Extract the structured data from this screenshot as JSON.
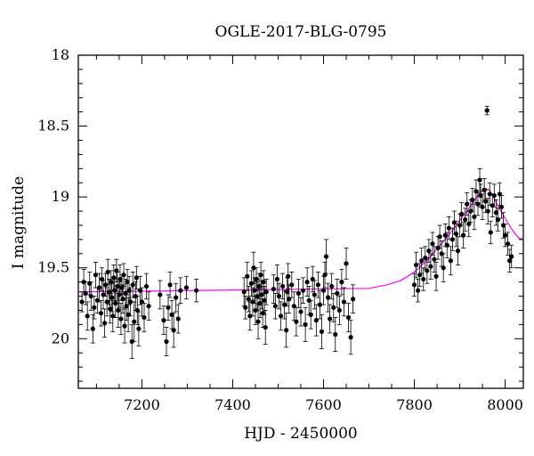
{
  "chart_data": {
    "type": "scatter",
    "title": "OGLE-2017-BLG-0795",
    "xlabel": "HJD - 2450000",
    "ylabel": "I magnitude",
    "xlim": [
      7060,
      8040
    ],
    "ylim": [
      18,
      20.35
    ],
    "y_inverted": true,
    "grid": false,
    "x_ticks": [
      "7200",
      "7400",
      "7600",
      "7800",
      "8000"
    ],
    "y_ticks": [
      "18",
      "18.5",
      "19",
      "19.5",
      "20"
    ],
    "series": [
      {
        "kind": "points_with_error_bars",
        "color": "#000000",
        "points": [
          [
            7068,
            19.74,
            0.07
          ],
          [
            7072,
            19.6,
            0.09
          ],
          [
            7076,
            19.68,
            0.08
          ],
          [
            7080,
            19.84,
            0.1
          ],
          [
            7085,
            19.61,
            0.08
          ],
          [
            7088,
            19.7,
            0.1
          ],
          [
            7092,
            19.93,
            0.1
          ],
          [
            7095,
            19.78,
            0.08
          ],
          [
            7098,
            19.55,
            0.09
          ],
          [
            7102,
            19.73,
            0.09
          ],
          [
            7106,
            19.64,
            0.1
          ],
          [
            7110,
            19.82,
            0.09
          ],
          [
            7112,
            19.58,
            0.08
          ],
          [
            7115,
            19.69,
            0.1
          ],
          [
            7118,
            19.89,
            0.1
          ],
          [
            7120,
            19.62,
            0.08
          ],
          [
            7123,
            19.74,
            0.1
          ],
          [
            7125,
            19.53,
            0.09
          ],
          [
            7128,
            19.67,
            0.09
          ],
          [
            7130,
            19.79,
            0.1
          ],
          [
            7132,
            19.6,
            0.08
          ],
          [
            7134,
            19.71,
            0.1
          ],
          [
            7136,
            19.84,
            0.11
          ],
          [
            7138,
            19.57,
            0.09
          ],
          [
            7140,
            19.66,
            0.09
          ],
          [
            7142,
            19.75,
            0.1
          ],
          [
            7144,
            19.52,
            0.08
          ],
          [
            7146,
            19.63,
            0.1
          ],
          [
            7148,
            19.8,
            0.12
          ],
          [
            7150,
            19.69,
            0.09
          ],
          [
            7152,
            19.58,
            0.1
          ],
          [
            7154,
            19.86,
            0.11
          ],
          [
            7156,
            19.64,
            0.09
          ],
          [
            7158,
            19.72,
            0.1
          ],
          [
            7160,
            19.55,
            0.08
          ],
          [
            7162,
            19.91,
            0.12
          ],
          [
            7164,
            19.68,
            0.1
          ],
          [
            7166,
            19.77,
            0.1
          ],
          [
            7168,
            19.6,
            0.09
          ],
          [
            7170,
            19.83,
            0.12
          ],
          [
            7172,
            19.66,
            0.1
          ],
          [
            7175,
            19.74,
            0.1
          ],
          [
            7178,
            20.02,
            0.12
          ],
          [
            7180,
            19.62,
            0.09
          ],
          [
            7183,
            19.88,
            0.14
          ],
          [
            7186,
            19.7,
            0.1
          ],
          [
            7188,
            19.57,
            0.08
          ],
          [
            7190,
            19.8,
            0.1
          ],
          [
            7193,
            19.93,
            0.12
          ],
          [
            7196,
            19.66,
            0.1
          ],
          [
            7200,
            19.74,
            0.1
          ],
          [
            7205,
            19.85,
            0.1
          ],
          [
            7210,
            19.63,
            0.09
          ],
          [
            7215,
            19.77,
            0.1
          ],
          [
            7240,
            19.69,
            0.1
          ],
          [
            7248,
            19.87,
            0.1
          ],
          [
            7254,
            20.02,
            0.1
          ],
          [
            7258,
            19.78,
            0.09
          ],
          [
            7262,
            19.62,
            0.09
          ],
          [
            7266,
            19.83,
            0.1
          ],
          [
            7270,
            19.94,
            0.12
          ],
          [
            7275,
            19.71,
            0.1
          ],
          [
            7280,
            19.86,
            0.1
          ],
          [
            7285,
            19.66,
            0.09
          ],
          [
            7298,
            19.64,
            0.08
          ],
          [
            7320,
            19.66,
            0.08
          ],
          [
            7425,
            19.67,
            0.1
          ],
          [
            7428,
            19.78,
            0.08
          ],
          [
            7432,
            19.56,
            0.1
          ],
          [
            7435,
            19.72,
            0.09
          ],
          [
            7438,
            19.84,
            0.1
          ],
          [
            7441,
            19.61,
            0.09
          ],
          [
            7444,
            19.74,
            0.1
          ],
          [
            7446,
            19.5,
            0.11
          ],
          [
            7448,
            19.66,
            0.09
          ],
          [
            7450,
            19.8,
            0.1
          ],
          [
            7452,
            19.58,
            0.08
          ],
          [
            7454,
            19.7,
            0.1
          ],
          [
            7456,
            19.88,
            0.12
          ],
          [
            7458,
            19.63,
            0.09
          ],
          [
            7460,
            19.75,
            0.1
          ],
          [
            7462,
            19.55,
            0.09
          ],
          [
            7464,
            19.69,
            0.1
          ],
          [
            7466,
            19.82,
            0.1
          ],
          [
            7468,
            19.6,
            0.08
          ],
          [
            7470,
            19.73,
            0.1
          ],
          [
            7472,
            19.92,
            0.12
          ],
          [
            7474,
            19.67,
            0.09
          ],
          [
            7490,
            19.65,
            0.1
          ],
          [
            7494,
            19.77,
            0.09
          ],
          [
            7498,
            19.58,
            0.1
          ],
          [
            7502,
            19.7,
            0.09
          ],
          [
            7506,
            19.84,
            0.1
          ],
          [
            7510,
            19.63,
            0.09
          ],
          [
            7514,
            19.76,
            0.1
          ],
          [
            7518,
            19.94,
            0.12
          ],
          [
            7520,
            19.67,
            0.1
          ],
          [
            7522,
            19.56,
            0.09
          ],
          [
            7524,
            19.72,
            0.1
          ],
          [
            7530,
            19.62,
            0.09
          ],
          [
            7535,
            19.77,
            0.1
          ],
          [
            7540,
            19.88,
            0.1
          ],
          [
            7545,
            19.68,
            0.1
          ],
          [
            7550,
            19.81,
            0.1
          ],
          [
            7555,
            19.66,
            0.09
          ],
          [
            7560,
            19.9,
            0.12
          ],
          [
            7564,
            19.6,
            0.1
          ],
          [
            7568,
            19.73,
            0.1
          ],
          [
            7572,
            19.83,
            0.1
          ],
          [
            7576,
            19.58,
            0.09
          ],
          [
            7580,
            19.69,
            0.1
          ],
          [
            7584,
            19.87,
            0.11
          ],
          [
            7588,
            19.62,
            0.09
          ],
          [
            7592,
            19.76,
            0.1
          ],
          [
            7596,
            19.95,
            0.12
          ],
          [
            7600,
            19.66,
            0.1
          ],
          [
            7603,
            19.55,
            0.09
          ],
          [
            7606,
            19.42,
            0.12
          ],
          [
            7610,
            19.71,
            0.1
          ],
          [
            7614,
            19.86,
            0.1
          ],
          [
            7618,
            19.63,
            0.09
          ],
          [
            7622,
            19.78,
            0.1
          ],
          [
            7626,
            19.97,
            0.12
          ],
          [
            7630,
            19.68,
            0.1
          ],
          [
            7635,
            19.8,
            0.1
          ],
          [
            7640,
            19.6,
            0.09
          ],
          [
            7645,
            19.74,
            0.1
          ],
          [
            7650,
            19.47,
            0.11
          ],
          [
            7655,
            19.85,
            0.1
          ],
          [
            7660,
            19.99,
            0.12
          ],
          [
            7665,
            19.72,
            0.1
          ],
          [
            7800,
            19.62,
            0.08
          ],
          [
            7804,
            19.48,
            0.09
          ],
          [
            7808,
            19.66,
            0.08
          ],
          [
            7812,
            19.55,
            0.08
          ],
          [
            7816,
            19.45,
            0.09
          ],
          [
            7820,
            19.58,
            0.08
          ],
          [
            7824,
            19.43,
            0.08
          ],
          [
            7828,
            19.52,
            0.09
          ],
          [
            7832,
            19.38,
            0.08
          ],
          [
            7836,
            19.49,
            0.09
          ],
          [
            7840,
            19.33,
            0.08
          ],
          [
            7844,
            19.44,
            0.09
          ],
          [
            7848,
            19.56,
            0.1
          ],
          [
            7852,
            19.36,
            0.08
          ],
          [
            7856,
            19.28,
            0.08
          ],
          [
            7860,
            19.4,
            0.09
          ],
          [
            7864,
            19.5,
            0.1
          ],
          [
            7868,
            19.27,
            0.08
          ],
          [
            7872,
            19.34,
            0.09
          ],
          [
            7876,
            19.22,
            0.08
          ],
          [
            7880,
            19.45,
            0.1
          ],
          [
            7884,
            19.3,
            0.08
          ],
          [
            7888,
            19.18,
            0.08
          ],
          [
            7892,
            19.26,
            0.09
          ],
          [
            7896,
            19.38,
            0.1
          ],
          [
            7900,
            19.2,
            0.08
          ],
          [
            7904,
            19.12,
            0.08
          ],
          [
            7908,
            19.27,
            0.09
          ],
          [
            7912,
            19.16,
            0.08
          ],
          [
            7916,
            19.05,
            0.08
          ],
          [
            7920,
            19.19,
            0.09
          ],
          [
            7924,
            19.1,
            0.08
          ],
          [
            7928,
            19.02,
            0.08
          ],
          [
            7932,
            19.14,
            0.09
          ],
          [
            7936,
            18.96,
            0.08
          ],
          [
            7940,
            19.05,
            0.08
          ],
          [
            7944,
            18.88,
            0.08
          ],
          [
            7946,
            18.99,
            0.08
          ],
          [
            7950,
            19.07,
            0.09
          ],
          [
            7954,
            18.95,
            0.08
          ],
          [
            7957,
            19.03,
            0.08
          ],
          [
            7960,
            18.39,
            0.03
          ],
          [
            7962,
            19.1,
            0.09
          ],
          [
            7966,
            18.98,
            0.08
          ],
          [
            7968,
            19.25,
            0.08
          ],
          [
            7972,
            19.06,
            0.08
          ],
          [
            7976,
            18.99,
            0.08
          ],
          [
            7980,
            19.11,
            0.09
          ],
          [
            7984,
            19.16,
            0.08
          ],
          [
            7988,
            18.98,
            0.08
          ],
          [
            7992,
            19.07,
            0.08
          ],
          [
            7996,
            19.2,
            0.09
          ],
          [
            8000,
            19.27,
            0.08
          ],
          [
            8006,
            19.33,
            0.08
          ],
          [
            8010,
            19.45,
            0.08
          ],
          [
            8014,
            19.42,
            0.08
          ]
        ]
      },
      {
        "kind": "model_curve",
        "color": "#ff00ff",
        "points": [
          [
            7060,
            19.67
          ],
          [
            7700,
            19.645
          ],
          [
            7740,
            19.62
          ],
          [
            7770,
            19.59
          ],
          [
            7800,
            19.53
          ],
          [
            7830,
            19.44
          ],
          [
            7860,
            19.33
          ],
          [
            7890,
            19.21
          ],
          [
            7920,
            19.08
          ],
          [
            7940,
            18.99
          ],
          [
            7955,
            18.94
          ],
          [
            7965,
            18.95
          ],
          [
            7975,
            19.0
          ],
          [
            7985,
            19.07
          ],
          [
            8000,
            19.15
          ],
          [
            8015,
            19.23
          ],
          [
            8030,
            19.29
          ],
          [
            8040,
            19.3
          ]
        ]
      }
    ]
  }
}
